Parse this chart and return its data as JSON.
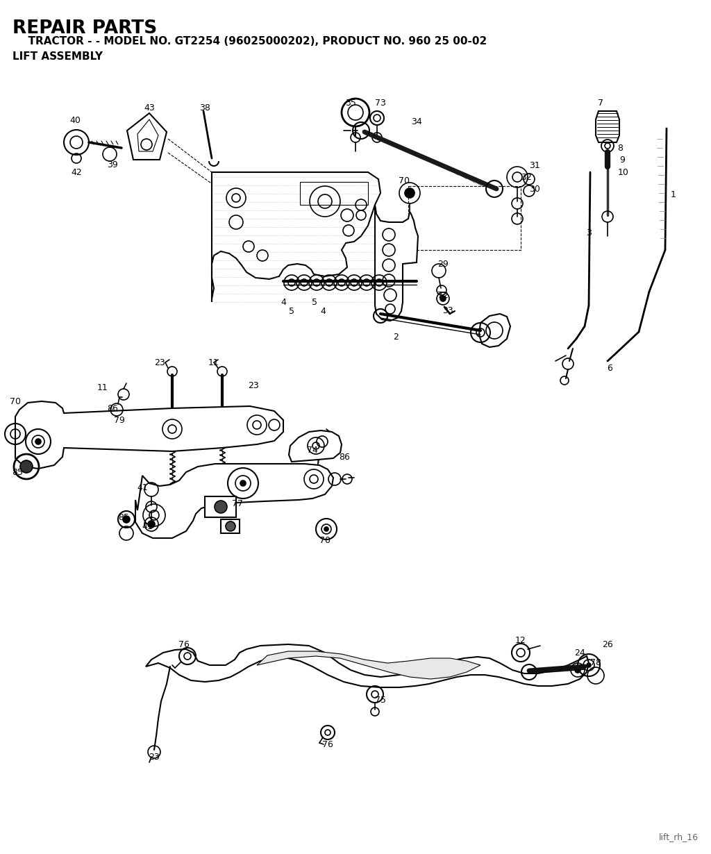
{
  "title_line1": "REPAIR PARTS",
  "title_line2": "  TRACTOR - - MODEL NO. GT2254 (96025000202), PRODUCT NO. 960 25 00-02",
  "title_line3": "LIFT ASSEMBLY",
  "footer": "lift_rh_16",
  "bg_color": "#ffffff",
  "line_color": "#000000",
  "fig_w": 10.24,
  "fig_h": 12.3,
  "dpi": 100
}
